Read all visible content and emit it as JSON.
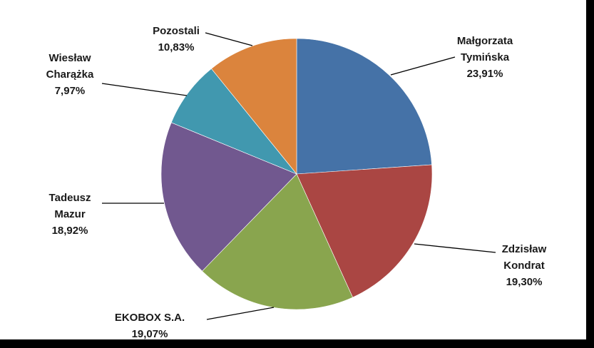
{
  "chart_data": {
    "type": "pie",
    "title": "",
    "start_angle_deg": 0,
    "direction": "clockwise",
    "legend": "none",
    "slices": [
      {
        "name": "Małgorzata Tymińska",
        "lines": [
          "Małgorzata",
          "Tymińska"
        ],
        "value": 23.91,
        "value_label": "23,91%",
        "color": "#4572A7"
      },
      {
        "name": "Zdzisław Kondrat",
        "lines": [
          "Zdzisław",
          "Kondrat"
        ],
        "value": 19.3,
        "value_label": "19,30%",
        "color": "#AA4643"
      },
      {
        "name": "EKOBOX S.A.",
        "lines": [
          "EKOBOX S.A."
        ],
        "value": 19.07,
        "value_label": "19,07%",
        "color": "#89A54E"
      },
      {
        "name": "Tadeusz Mazur",
        "lines": [
          "Tadeusz",
          "Mazur"
        ],
        "value": 18.92,
        "value_label": "18,92%",
        "color": "#71588F"
      },
      {
        "name": "Wiesław Charążka",
        "lines": [
          "Wiesław",
          "Charążka"
        ],
        "value": 7.97,
        "value_label": "7,97%",
        "color": "#4198AF"
      },
      {
        "name": "Pozostali",
        "lines": [
          "Pozostali"
        ],
        "value": 10.83,
        "value_label": "10,83%",
        "color": "#DB843D"
      }
    ]
  }
}
